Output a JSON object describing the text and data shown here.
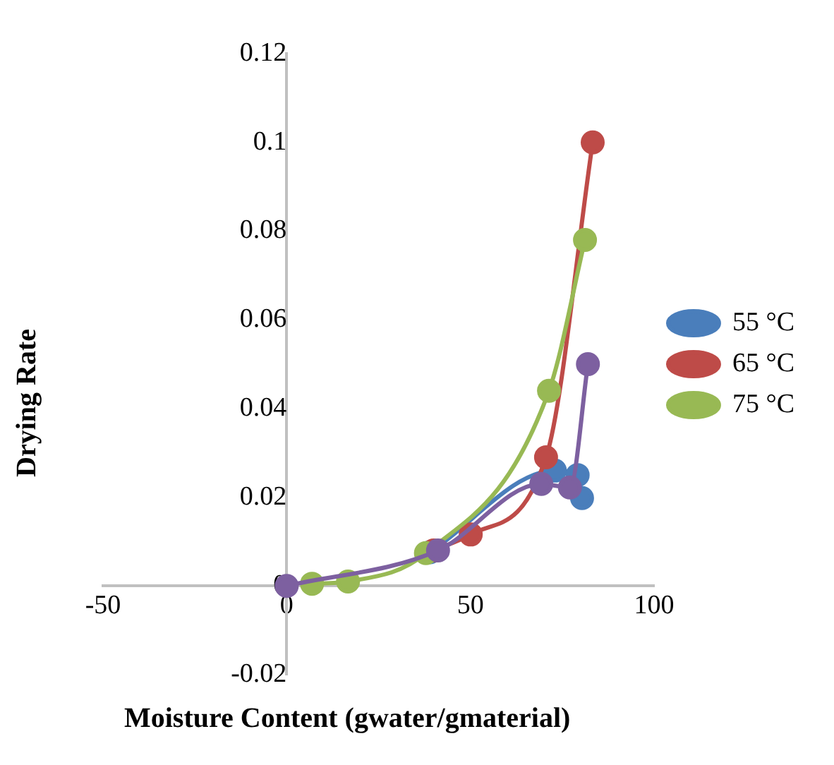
{
  "chart_data": {
    "type": "line",
    "xlabel": "Moisture Content (gwater/gmaterial)",
    "ylabel": "Drying Rate",
    "xlim": [
      -50,
      100
    ],
    "ylim": [
      -0.02,
      0.12
    ],
    "xticks": [
      -50,
      0,
      50,
      100
    ],
    "yticks": [
      -0.02,
      0,
      0.02,
      0.04,
      0.06,
      0.08,
      0.1,
      0.12
    ],
    "grid": false,
    "legend": "right",
    "marker": "circle",
    "line_style": "solid",
    "series": [
      {
        "name": "55 °C",
        "color": "#4a7ebb",
        "x": [
          39,
          47.7,
          73,
          79.2,
          80.4
        ],
        "values": [
          0.0076,
          null,
          0.026,
          0.025,
          0.0198
        ]
      },
      {
        "name": "65 °C",
        "color": "#be4b48",
        "x": [
          40,
          50.1,
          70.6,
          83.3
        ],
        "values": [
          0.008,
          0.0116,
          0.029,
          0.1
        ]
      },
      {
        "name": "75 °C",
        "color": "#98b954",
        "x": [
          6.9,
          16.7,
          37.9,
          71.4,
          81.2
        ],
        "values": [
          0.0005,
          0.001,
          0.0074,
          0.044,
          0.078
        ]
      },
      {
        "color": "#7d60a0",
        "x": [
          0,
          41.2,
          69.3,
          77.1,
          82
        ],
        "values": [
          0,
          0.008,
          0.023,
          0.0222,
          0.05
        ]
      }
    ]
  }
}
